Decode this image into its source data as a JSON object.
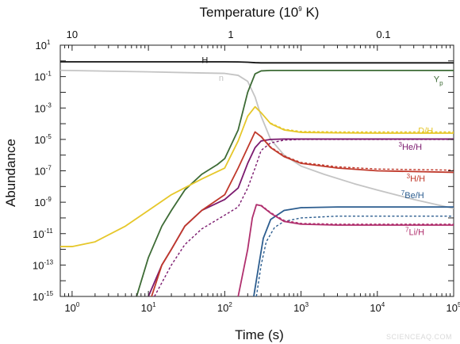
{
  "chart_data": {
    "type": "line",
    "title": "",
    "xlabel": "Time (s)",
    "ylabel": "Abundance",
    "top_axis_label": "Temperature  (10",
    "top_axis_label_exp": "9",
    "top_axis_label_unit": " K)",
    "x_scale": "log",
    "y_scale": "log",
    "xlim": [
      0.7,
      100000
    ],
    "ylim": [
      1e-15,
      10
    ],
    "x_ticks": [
      {
        "value": 1,
        "base": "10",
        "exp": "0"
      },
      {
        "value": 10,
        "base": "10",
        "exp": "1"
      },
      {
        "value": 100,
        "base": "10",
        "exp": "2"
      },
      {
        "value": 1000,
        "base": "10",
        "exp": "3"
      },
      {
        "value": 10000,
        "base": "10",
        "exp": "4"
      },
      {
        "value": 100000,
        "base": "10",
        "exp": "5"
      }
    ],
    "y_ticks": [
      {
        "value": 10,
        "base": "10",
        "exp": "1"
      },
      {
        "value": 0.1,
        "base": "10",
        "exp": "-1"
      },
      {
        "value": 0.001,
        "base": "10",
        "exp": "-3"
      },
      {
        "value": 1e-05,
        "base": "10",
        "exp": "-5"
      },
      {
        "value": 1e-07,
        "base": "10",
        "exp": "-7"
      },
      {
        "value": 1e-09,
        "base": "10",
        "exp": "-9"
      },
      {
        "value": 1e-11,
        "base": "10",
        "exp": "-11"
      },
      {
        "value": 1e-13,
        "base": "10",
        "exp": "-13"
      },
      {
        "value": 1e-15,
        "base": "10",
        "exp": "-15"
      }
    ],
    "top_ticks": [
      {
        "time": 1,
        "label": "10"
      },
      {
        "time": 120,
        "label": "1"
      },
      {
        "time": 12000,
        "label": "0.1"
      }
    ],
    "series": [
      {
        "name": "H",
        "label_sup": "",
        "label_main": "H",
        "label_at": [
          55,
          0.72
        ],
        "color": "#111111",
        "dashed": false,
        "x": [
          0.7,
          10,
          100,
          150,
          200,
          250,
          300,
          1000,
          100000
        ],
        "y": [
          0.87,
          0.87,
          0.87,
          0.86,
          0.82,
          0.77,
          0.75,
          0.75,
          0.75
        ]
      },
      {
        "name": "n",
        "label_sup": "",
        "label_main": "n",
        "label_at": [
          90,
          0.055
        ],
        "color": "#c4c4c4",
        "dashed": false,
        "x": [
          0.7,
          10,
          50,
          100,
          150,
          200,
          250,
          300,
          400,
          600,
          1000,
          2000,
          5000,
          10000,
          30000,
          100000
        ],
        "y": [
          0.25,
          0.2,
          0.17,
          0.16,
          0.12,
          0.05,
          0.005,
          0.0003,
          1e-05,
          1e-06,
          2e-07,
          6e-08,
          1.5e-08,
          6e-09,
          1.5e-09,
          4e-10
        ]
      },
      {
        "name": "Yp",
        "label_sup": "",
        "label_main": "Y",
        "label_sub": "p",
        "label_at": [
          63000,
          0.045
        ],
        "color": "#3d6b35",
        "dashed": false,
        "x": [
          7,
          10,
          15,
          20,
          30,
          50,
          80,
          100,
          150,
          200,
          250,
          300,
          400,
          1000,
          100000
        ],
        "y": [
          1e-15,
          3e-13,
          3e-11,
          3e-10,
          6e-09,
          6e-08,
          2.5e-07,
          6e-07,
          4e-05,
          0.01,
          0.15,
          0.23,
          0.245,
          0.247,
          0.247
        ]
      },
      {
        "name": "D/H",
        "label_sup": "",
        "label_main": "D/H",
        "label_at": [
          43000,
          2.4e-05
        ],
        "color": "#e6c72a",
        "dashed": false,
        "x": [
          0.7,
          1,
          2,
          5,
          10,
          20,
          50,
          100,
          150,
          200,
          250,
          300,
          400,
          600,
          1000,
          3000,
          10000,
          100000
        ],
        "y": [
          1.5e-12,
          1.5e-12,
          3e-12,
          3e-11,
          3e-10,
          3e-09,
          3e-08,
          1.5e-07,
          8e-06,
          0.0003,
          0.0012,
          0.0005,
          0.0001,
          4e-05,
          2.8e-05,
          2.6e-05,
          2.5e-05,
          2.5e-05
        ]
      },
      {
        "name": "D/H (dashed)",
        "label_sup": "",
        "label_main": "",
        "label_at": null,
        "color": "#e6c72a",
        "dashed": true,
        "x": [
          400,
          600,
          1000,
          3000,
          10000,
          100000
        ],
        "y": [
          0.00011,
          4.5e-05,
          3.2e-05,
          3e-05,
          3e-05,
          3e-05
        ]
      },
      {
        "name": "3He/H",
        "label_sup": "3",
        "label_main": "He/H",
        "label_at": [
          27000,
          2.2e-06
        ],
        "color": "#7b1a6e",
        "dashed": false,
        "x": [
          10,
          15,
          20,
          30,
          50,
          100,
          150,
          200,
          250,
          300,
          400,
          600,
          1000,
          10000,
          100000
        ],
        "y": [
          1e-15,
          1e-13,
          1e-12,
          3e-11,
          3e-10,
          1.5e-09,
          8e-09,
          3e-07,
          3e-06,
          8e-06,
          1e-05,
          1.05e-05,
          1.05e-05,
          1.05e-05,
          1.05e-05
        ]
      },
      {
        "name": "3He/H (dashed)",
        "label_sup": "",
        "label_main": "",
        "label_at": null,
        "color": "#7b1a6e",
        "dashed": true,
        "x": [
          12,
          20,
          30,
          50,
          100,
          150,
          200,
          250,
          300,
          400,
          600,
          1000,
          100000
        ],
        "y": [
          1e-15,
          1e-13,
          2e-12,
          2e-11,
          1.5e-10,
          5e-10,
          8e-09,
          1.5e-07,
          2e-06,
          6e-06,
          9e-06,
          1e-05,
          1e-05
        ]
      },
      {
        "name": "3H/H",
        "label_sup": "3",
        "label_main": "H/H",
        "label_at": [
          32000,
          2.1e-08
        ],
        "color": "#c0392b",
        "dashed": false,
        "x": [
          11,
          15,
          20,
          30,
          50,
          100,
          150,
          200,
          250,
          300,
          400,
          600,
          1000,
          3000,
          10000,
          100000
        ],
        "y": [
          1e-15,
          1e-13,
          1e-12,
          3e-11,
          3e-10,
          3e-09,
          1.5e-07,
          3e-06,
          3e-05,
          1.5e-05,
          3e-06,
          8e-07,
          3e-07,
          1.5e-07,
          1e-07,
          8e-08
        ]
      },
      {
        "name": "3H/H (dashed)",
        "label_sup": "",
        "label_main": "",
        "label_at": null,
        "color": "#c0392b",
        "dashed": true,
        "x": [
          300,
          400,
          600,
          1000,
          3000,
          10000,
          100000
        ],
        "y": [
          1.6e-05,
          3.3e-06,
          9e-07,
          3.4e-07,
          1.8e-07,
          1.3e-07,
          1.1e-07
        ]
      },
      {
        "name": "7Be/H",
        "label_sup": "7",
        "label_main": "Be/H",
        "label_at": [
          29000,
          1.8e-09
        ],
        "color": "#2c5d8f",
        "dashed": false,
        "x": [
          240,
          280,
          320,
          400,
          600,
          1000,
          3000,
          10000,
          100000
        ],
        "y": [
          1e-15,
          1e-13,
          5e-12,
          8e-11,
          3e-10,
          4.5e-10,
          5e-10,
          5e-10,
          5e-10
        ]
      },
      {
        "name": "7Be/H (dashed)",
        "label_sup": "",
        "label_main": "",
        "label_at": null,
        "color": "#2c5d8f",
        "dashed": true,
        "x": [
          260,
          300,
          350,
          450,
          600,
          1000,
          3000,
          10000,
          100000
        ],
        "y": [
          1e-15,
          1e-13,
          3e-12,
          2.5e-11,
          6e-11,
          1e-10,
          1.3e-10,
          1.3e-10,
          1.3e-10
        ]
      },
      {
        "name": "7Li/H",
        "label_sup": "7",
        "label_main": "Li/H",
        "label_at": [
          31000,
          8e-12
        ],
        "color": "#b0306e",
        "dashed": false,
        "x": [
          150,
          200,
          230,
          260,
          300,
          400,
          600,
          1000,
          3000,
          10000,
          100000
        ],
        "y": [
          1e-15,
          1e-12,
          1e-10,
          7e-10,
          6e-10,
          2e-10,
          6e-11,
          4e-11,
          3.5e-11,
          3.5e-11,
          3.5e-11
        ]
      },
      {
        "name": "7Li/H (dashed)",
        "label_sup": "",
        "label_main": "",
        "label_at": null,
        "color": "#b0306e",
        "dashed": true,
        "x": [
          300,
          400,
          600,
          1000,
          3000,
          10000,
          100000
        ],
        "y": [
          6.5e-10,
          2.2e-10,
          7e-11,
          4.5e-11,
          4e-11,
          4e-11,
          4e-11
        ]
      }
    ]
  },
  "watermark": "SCIENCEAQ.COM"
}
